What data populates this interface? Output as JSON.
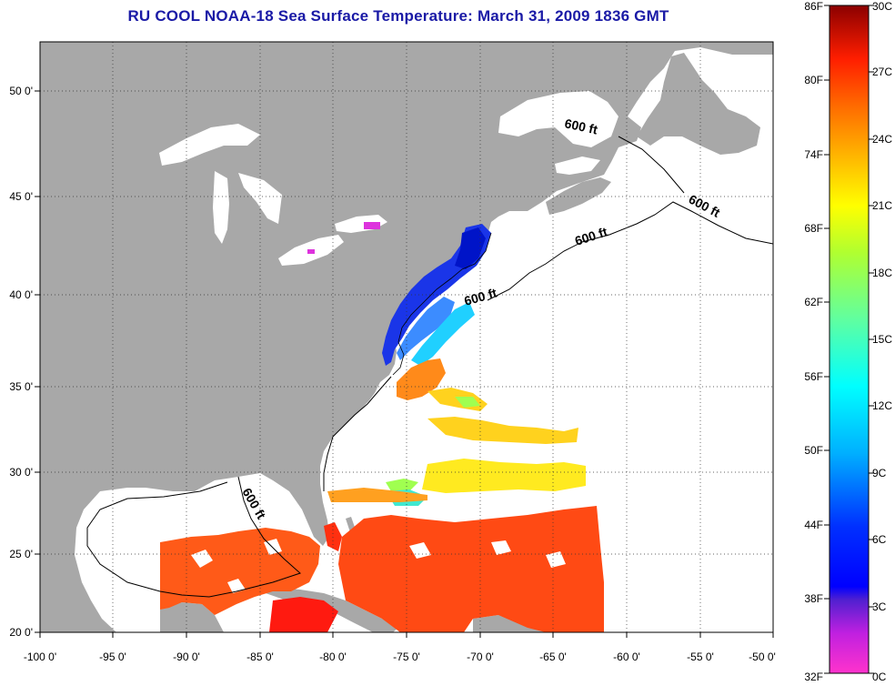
{
  "title": "RU COOL  NOAA-18  Sea Surface Temperature:  March 31, 2009 1836 GMT",
  "axes": {
    "lon_ticks": [
      "-100 0'",
      "-95 0'",
      "-90 0'",
      "-85 0'",
      "-80 0'",
      "-75 0'",
      "-70 0'",
      "-65 0'",
      "-60 0'",
      "-55 0'",
      "-50 0'"
    ],
    "lat_ticks": [
      "50 0'",
      "45 0'",
      "40 0'",
      "35 0'",
      "30 0'",
      "25 0'",
      "20 0'"
    ]
  },
  "contour_labels": [
    "600 ft",
    "600 ft",
    "600 ft",
    "600 ft",
    "600 ft"
  ],
  "colorbar": {
    "f_labels": [
      "86F",
      "80F",
      "74F",
      "68F",
      "62F",
      "56F",
      "50F",
      "44F",
      "38F",
      "32F"
    ],
    "c_labels": [
      "30C",
      "27C",
      "24C",
      "21C",
      "18C",
      "15C",
      "12C",
      "9C",
      "6C",
      "3C",
      "0C"
    ]
  },
  "colors": {
    "land": "#a8a8a8",
    "ocean_no_data": "#ffffff",
    "title": "#1a1aa6",
    "scale_hot": "#8b0000",
    "scale_red": "#ff2000",
    "scale_orange": "#ff8c00",
    "scale_yellow": "#ffff00",
    "scale_green": "#66ff33",
    "scale_cyan": "#00ffff",
    "scale_blue": "#0000ff",
    "scale_purple": "#8000c0",
    "scale_magenta": "#ff00ff"
  }
}
